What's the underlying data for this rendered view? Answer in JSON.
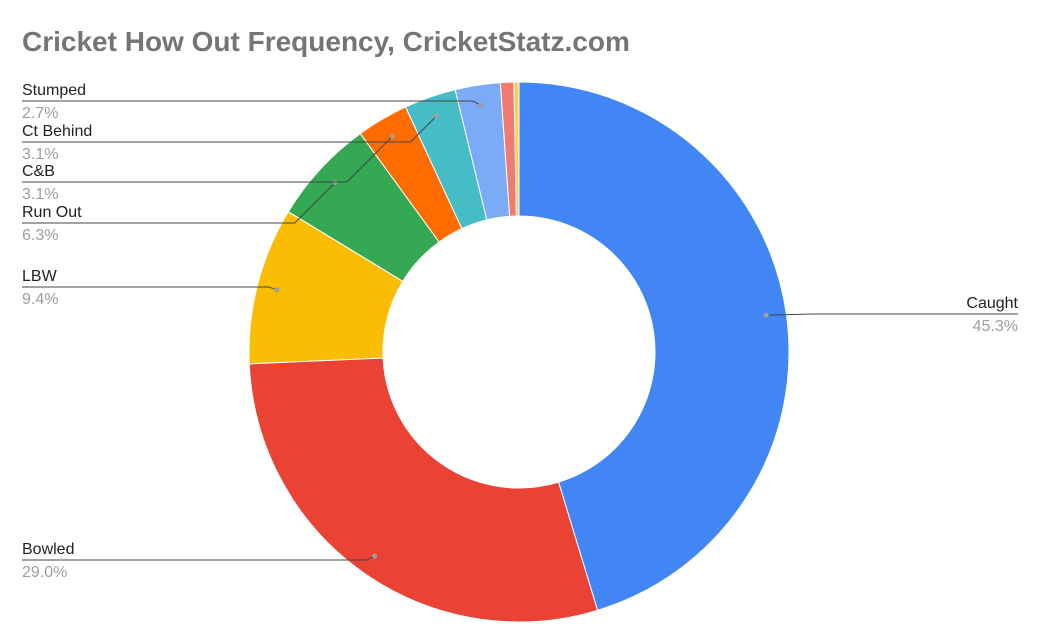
{
  "chart_data": {
    "type": "pie",
    "subtype": "donut",
    "title": "Cricket How Out Frequency, CricketStatz.com",
    "legend": "labeled-leader-lines",
    "slices": [
      {
        "name": "Caught",
        "value": 45.3,
        "display": "45.3%",
        "color": "#4285f4",
        "labeled": true
      },
      {
        "name": "Bowled",
        "value": 29.0,
        "display": "29.0%",
        "color": "#ea4335",
        "labeled": true
      },
      {
        "name": "LBW",
        "value": 9.4,
        "display": "9.4%",
        "color": "#fbbc04",
        "labeled": true
      },
      {
        "name": "Run Out",
        "value": 6.3,
        "display": "6.3%",
        "color": "#34a853",
        "labeled": true
      },
      {
        "name": "C&B",
        "value": 3.1,
        "display": "3.1%",
        "color": "#ff6d01",
        "labeled": true
      },
      {
        "name": "Ct Behind",
        "value": 3.1,
        "display": "3.1%",
        "color": "#46bdc6",
        "labeled": true
      },
      {
        "name": "Stumped",
        "value": 2.7,
        "display": "2.7%",
        "color": "#7baaf7",
        "labeled": true
      },
      {
        "name": "",
        "value": 0.8,
        "display": "",
        "color": "#f07b72",
        "labeled": false
      },
      {
        "name": "",
        "value": 0.3,
        "display": "",
        "color": "#fcd04f",
        "labeled": false
      }
    ]
  }
}
